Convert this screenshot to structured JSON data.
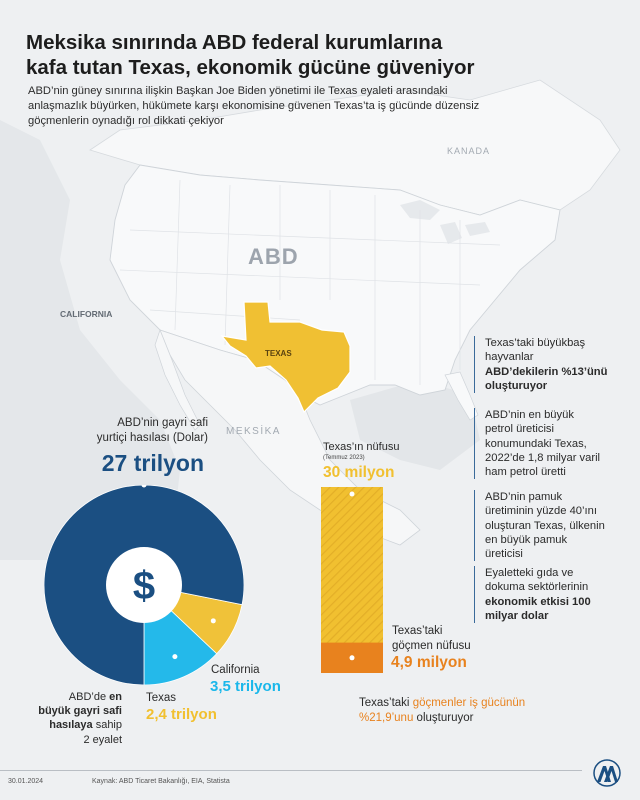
{
  "header": {
    "title_line1": "Meksika sınırında ABD federal kurumlarına",
    "title_line2": "kafa tutan Texas, ekonomik gücüne güveniyor",
    "subtitle_line1": "ABD’nin güney sınırına ilişkin Başkan Joe Biden yönetimi ile Texas eyaleti arasındaki",
    "subtitle_line2": "anlaşmazlık büyürken, hükümete karşı ekonomisine güvenen Texas’ta iş gücünde düzensiz",
    "subtitle_line3": "göçmenlerin oynadığı rol dikkati çekiyor"
  },
  "map": {
    "country_usa": "ABD",
    "country_canada": "KANADA",
    "country_mexico": "MEKSİKA",
    "state_california": "CALIFORNIA",
    "state_texas": "TEXAS",
    "texas_color": "#f0c033"
  },
  "gdp": {
    "label_line1": "ABD’nin gayri safi",
    "label_line2": "yurtiçi hasılası (Dolar)",
    "value": "27 trilyon",
    "center_symbol": "$",
    "top_states_pre": "ABD’de ",
    "top_states_bold1": "en",
    "top_states_bold2": "büyük gayri safi",
    "top_states_bold3": "hasılaya",
    "top_states_post": " sahip",
    "top_states_line4": "2 eyalet",
    "california_label": "California",
    "california_value": "3,5 trilyon",
    "texas_label": "Texas",
    "texas_value": "2,4 trilyon"
  },
  "population": {
    "label": "Texas’ın nüfusu",
    "date": "(Temmuz 2023)",
    "value": "30 milyon",
    "migrant_label_line1": "Texas’taki",
    "migrant_label_line2": "göçmen nüfusu",
    "migrant_value": "4,9 milyon",
    "workforce_pre": "Texas’taki ",
    "workforce_hl1": "göçmenler iş gücünün",
    "workforce_hl2": "%21,9’unu",
    "workforce_post": " oluşturuyor"
  },
  "facts": [
    {
      "l1": "Texas’taki büyükbaş",
      "l2": "hayvanlar",
      "l3": "ABD’dekilerin %13’ünü",
      "l4": "oluşturuyor"
    },
    {
      "l1": "ABD’nin en büyük",
      "l2": "petrol üreticisi",
      "l3": "konumundaki Texas,",
      "l4": "2022’de 1,8 milyar varil",
      "l5": "ham petrol üretti"
    },
    {
      "l1": "ABD’nin pamuk",
      "l2": "üretiminin yüzde 40’ını",
      "l3": "oluşturan Texas, ülkenin",
      "l4": "en büyük pamuk",
      "l5": "üreticisi"
    },
    {
      "l1": "Eyaletteki gıda ve",
      "l2": "dokuma sektörlerinin",
      "l3": "ekonomik etkisi 100",
      "l4": "milyar dolar"
    }
  ],
  "footer": {
    "date": "30.01.2024",
    "source": "Kaynak: ABD Ticaret Bakanlığı, EIA, Statista",
    "logo": "AA"
  },
  "chart_data": [
    {
      "type": "pie",
      "title": "ABD’nin gayri safi yurtiçi hasılası (Dolar)",
      "total_label": "27 trilyon",
      "total": 27,
      "slices": [
        {
          "name": "California",
          "value": 3.5,
          "color": "#1ab7ea"
        },
        {
          "name": "Texas",
          "value": 2.4,
          "color": "#f1c030"
        },
        {
          "name": "",
          "value": 21.1,
          "color": "#1b4f82"
        }
      ]
    },
    {
      "type": "bar",
      "title": "Texas’ın nüfusu",
      "unit": "milyon",
      "total": 30,
      "migrant": 4.9,
      "colors": {
        "total": "#f1c030",
        "migrant": "#e8821e"
      }
    }
  ]
}
